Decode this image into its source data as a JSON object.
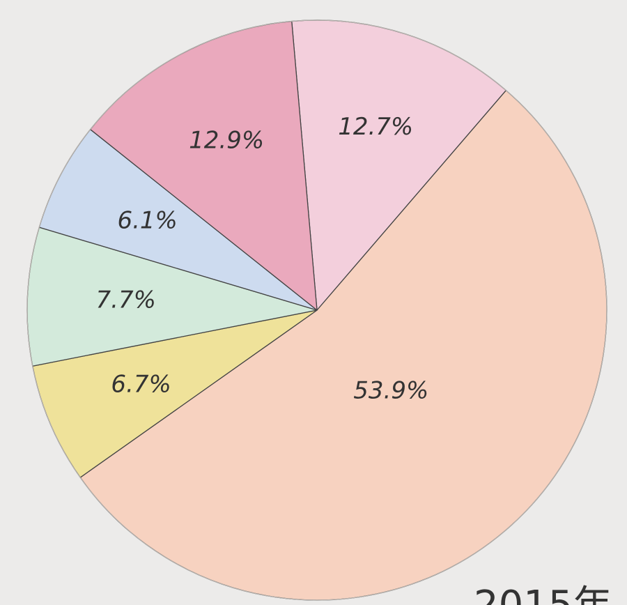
{
  "chart_data": {
    "type": "pie",
    "values": [
      12.7,
      53.9,
      6.7,
      7.7,
      6.1,
      12.9
    ],
    "value_labels": [
      "12.7%",
      "53.9%",
      "6.7%",
      "7.7%",
      "6.1%",
      "12.9%"
    ],
    "colors": [
      "#f3cfdc",
      "#f7d2c0",
      "#efe29a",
      "#d3eadb",
      "#cddbef",
      "#eaa9bd"
    ],
    "annotation": "2015年"
  }
}
